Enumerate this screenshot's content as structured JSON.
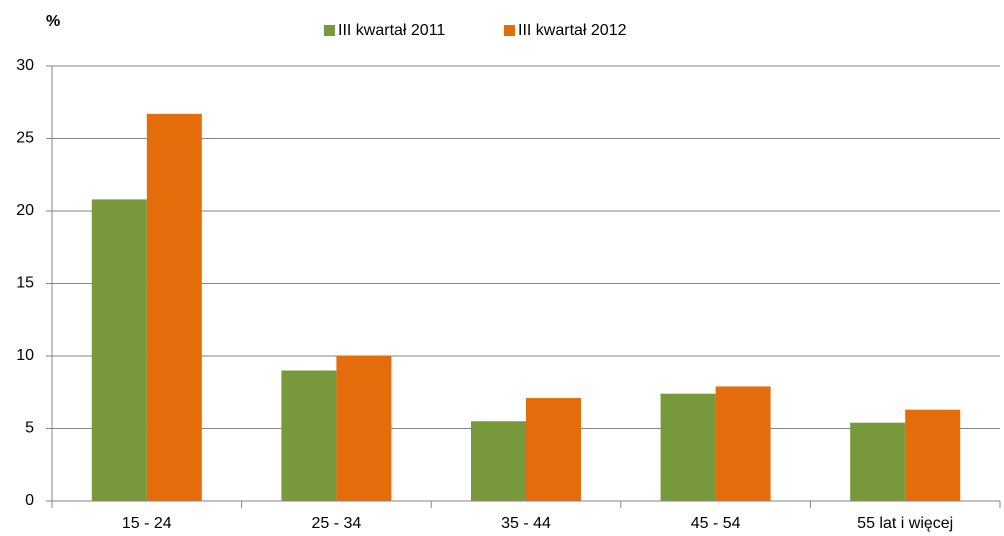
{
  "chart_data": {
    "type": "bar",
    "y_label": "%",
    "categories": [
      "15 - 24",
      "25 - 34",
      "35 - 44",
      "45 - 54",
      "55 lat i więcej"
    ],
    "series": [
      {
        "name": "III kwartał 2011",
        "color": "#77983b",
        "values": [
          20.8,
          9.0,
          5.5,
          7.4,
          5.4
        ]
      },
      {
        "name": "III kwartał 2012",
        "color": "#e46c0a",
        "values": [
          26.7,
          10.0,
          7.1,
          7.9,
          6.3
        ]
      }
    ],
    "ylim": [
      0,
      30
    ],
    "yticks": [
      0,
      5,
      10,
      15,
      20,
      25,
      30
    ],
    "grid": true,
    "legend": "top"
  }
}
